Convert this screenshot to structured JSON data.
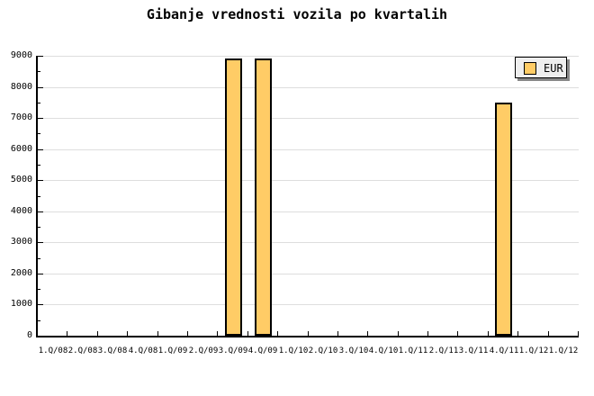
{
  "title": "Gibanje vrednosti vozila po kvartalih",
  "legend": {
    "label": "EUR"
  },
  "colors": {
    "background": "#FFFFFF",
    "bar_fill": "#FFCC66",
    "bar_border": "#000000",
    "grid": "#DEDEDE",
    "axis": "#000000",
    "legend_bg": "#EEEEEE",
    "legend_shadow": "#888888"
  },
  "chart_data": {
    "type": "bar",
    "title": "Gibanje vrednosti vozila po kvartalih",
    "categories": [
      "1.Q/08",
      "2.Q/08",
      "3.Q/08",
      "4.Q/08",
      "1.Q/09",
      "2.Q/09",
      "3.Q/09",
      "4.Q/09",
      "1.Q/10",
      "2.Q/10",
      "3.Q/10",
      "4.Q/10",
      "1.Q/11",
      "2.Q/11",
      "3.Q/11",
      "4.Q/11",
      "1.Q/12",
      "1.Q/12"
    ],
    "series": [
      {
        "name": "EUR",
        "values": [
          0,
          0,
          0,
          0,
          0,
          0,
          8900,
          8900,
          0,
          0,
          0,
          0,
          0,
          0,
          0,
          7500,
          0,
          0
        ]
      }
    ],
    "xlabel": "",
    "ylabel": "",
    "ylim": [
      0,
      9000
    ],
    "ytick_interval": 1000,
    "ytick_minor_interval": 500,
    "yticks": [
      0,
      1000,
      2000,
      3000,
      4000,
      5000,
      6000,
      7000,
      8000,
      9000
    ],
    "grid": "horizontal-major",
    "legend_position": "top-right"
  }
}
